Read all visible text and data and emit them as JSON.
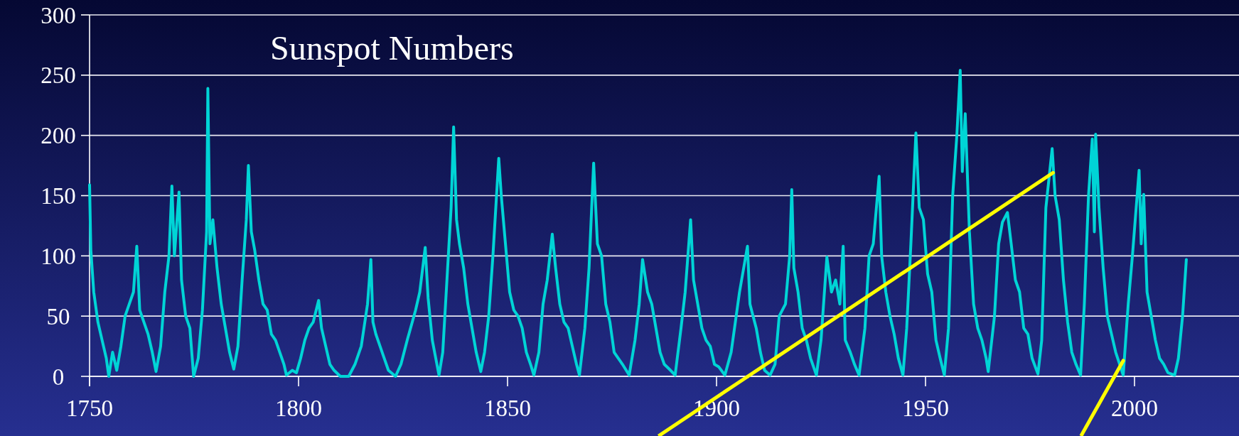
{
  "chart_data": {
    "type": "line",
    "title": "Sunspot Numbers",
    "xlim": [
      1750,
      2025
    ],
    "xticks": [
      1750,
      1800,
      1850,
      1900,
      1950,
      2000
    ],
    "ylim": [
      0,
      300
    ],
    "yticks": [
      0,
      50,
      100,
      150,
      200,
      250,
      300
    ],
    "grid": "y",
    "series": [
      {
        "color": "#00d4d6",
        "x": [
          1750.0,
          1750.3,
          1751,
          1752,
          1753,
          1754,
          1754.6,
          1755.5,
          1756.5,
          1757.5,
          1758.5,
          1759.5,
          1760.5,
          1761.3,
          1762,
          1763,
          1764,
          1765,
          1765.9,
          1767,
          1768,
          1769,
          1769.7,
          1770.3,
          1771.4,
          1772,
          1773,
          1774,
          1774.9,
          1776,
          1777,
          1778,
          1778.3,
          1778.8,
          1779.5,
          1780.5,
          1781.5,
          1782.5,
          1783.5,
          1784.5,
          1785.5,
          1786.5,
          1787.5,
          1788.0,
          1788.7,
          1789.5,
          1790.5,
          1791.5,
          1792.5,
          1793.5,
          1794.5,
          1795.5,
          1796.5,
          1797.1,
          1798.5,
          1799.5,
          1800.5,
          1801.5,
          1802.5,
          1803.5,
          1804.8,
          1805.5,
          1806.5,
          1807.5,
          1808.5,
          1810,
          1812,
          1813.5,
          1815,
          1816.5,
          1817.3,
          1817.8,
          1818.5,
          1819.5,
          1820.5,
          1821.5,
          1823.2,
          1824.5,
          1826,
          1828,
          1829,
          1830.3,
          1831,
          1832,
          1833.6,
          1834.5,
          1835.5,
          1836.5,
          1837.1,
          1837.8,
          1838.5,
          1839.5,
          1840.5,
          1841.5,
          1842.5,
          1843.6,
          1844.5,
          1845.5,
          1846.5,
          1847.9,
          1848.5,
          1849.5,
          1850.5,
          1851.5,
          1852.5,
          1853.5,
          1854.5,
          1855.5,
          1856.3,
          1857.5,
          1858.5,
          1859.5,
          1860.7,
          1861.5,
          1862.5,
          1863.5,
          1864.5,
          1865.5,
          1866.5,
          1867.2,
          1868.5,
          1869.5,
          1870.6,
          1871.5,
          1872.5,
          1873.5,
          1874.5,
          1875.5,
          1876.5,
          1877.5,
          1879.1,
          1880.5,
          1881.5,
          1882.3,
          1883.5,
          1884.5,
          1885.5,
          1886.5,
          1887.5,
          1889,
          1890.1,
          1891.5,
          1892.5,
          1893.8,
          1894.5,
          1895.5,
          1896.5,
          1897.5,
          1898.5,
          1899.5,
          1900.5,
          1902,
          1903.5,
          1904.5,
          1905.5,
          1907.4,
          1908,
          1909.5,
          1910.5,
          1911.5,
          1912.8,
          1914,
          1915,
          1916.5,
          1917.5,
          1918,
          1918.5,
          1919.5,
          1920.5,
          1921.5,
          1922.5,
          1923.9,
          1925,
          1926.4,
          1927.5,
          1928.5,
          1929.5,
          1930.3,
          1930.8,
          1932,
          1933,
          1934.1,
          1935.5,
          1936.5,
          1937.5,
          1938.9,
          1939.5,
          1940.5,
          1941.5,
          1942.5,
          1943.5,
          1944.6,
          1945.5,
          1946.5,
          1947.7,
          1948.5,
          1949.5,
          1950.5,
          1951.5,
          1952.5,
          1953.5,
          1954.5,
          1955.5,
          1956.5,
          1957.5,
          1958.3,
          1958.8,
          1959.5,
          1960.5,
          1961.5,
          1962.5,
          1963.5,
          1964.5,
          1965,
          1966.5,
          1967.5,
          1968.4,
          1969.6,
          1970.5,
          1971.5,
          1972.5,
          1973.5,
          1974.5,
          1975.5,
          1976.9,
          1977.8,
          1978.8,
          1980.3,
          1981,
          1982,
          1983,
          1984,
          1985,
          1986,
          1987.1,
          1988,
          1989,
          1989.9,
          1990.4,
          1990.7,
          1991.5,
          1992.5,
          1993.5,
          1994.5,
          1995.5,
          1997.3,
          1998.5,
          1999.5,
          2001.1,
          2001.6,
          2002.2,
          2003,
          2004,
          2005,
          2006,
          2007,
          2008,
          2009.6,
          2010.5,
          2011.5,
          2012.4
        ],
        "values": [
          159,
          105,
          70,
          45,
          30,
          15,
          0,
          20,
          5,
          25,
          50,
          60,
          70,
          108,
          55,
          45,
          35,
          20,
          4,
          25,
          70,
          100,
          158,
          100,
          153,
          80,
          50,
          40,
          0,
          15,
          55,
          120,
          239,
          110,
          130,
          90,
          60,
          40,
          20,
          6,
          25,
          80,
          130,
          175,
          120,
          105,
          80,
          60,
          55,
          35,
          30,
          20,
          10,
          1,
          5,
          3,
          15,
          30,
          40,
          45,
          63,
          40,
          25,
          10,
          5,
          0,
          0,
          10,
          25,
          60,
          97,
          45,
          35,
          25,
          15,
          5,
          0,
          10,
          30,
          55,
          70,
          107,
          65,
          30,
          1,
          20,
          80,
          140,
          207,
          130,
          110,
          90,
          60,
          40,
          20,
          4,
          20,
          50,
          100,
          181,
          150,
          110,
          70,
          55,
          50,
          40,
          20,
          10,
          1,
          20,
          60,
          80,
          118,
          90,
          60,
          45,
          40,
          25,
          10,
          1,
          40,
          90,
          177,
          110,
          100,
          60,
          45,
          20,
          15,
          10,
          1,
          30,
          60,
          97,
          70,
          60,
          40,
          20,
          10,
          5,
          1,
          40,
          70,
          130,
          80,
          60,
          40,
          30,
          25,
          10,
          8,
          1,
          20,
          45,
          70,
          108,
          60,
          40,
          20,
          5,
          1,
          10,
          50,
          60,
          100,
          155,
          90,
          70,
          40,
          30,
          15,
          1,
          30,
          99,
          70,
          80,
          60,
          108,
          30,
          20,
          10,
          1,
          40,
          100,
          110,
          166,
          100,
          70,
          50,
          35,
          15,
          1,
          40,
          110,
          202,
          140,
          130,
          85,
          70,
          30,
          15,
          1,
          40,
          150,
          200,
          254,
          170,
          218,
          120,
          60,
          40,
          30,
          15,
          4,
          50,
          110,
          128,
          136,
          110,
          80,
          70,
          40,
          35,
          15,
          2,
          30,
          140,
          189,
          150,
          130,
          80,
          45,
          20,
          10,
          1,
          60,
          150,
          197,
          120,
          201,
          140,
          90,
          50,
          35,
          20,
          1,
          60,
          100,
          171,
          110,
          151,
          70,
          50,
          30,
          15,
          10,
          3,
          1,
          15,
          50,
          97
        ]
      },
      {
        "type": "line",
        "color": "#ffff00",
        "x": [
          1907.5,
          1980.5
        ],
        "values": [
          0,
          169
        ]
      },
      {
        "type": "line",
        "color": "#ffff00",
        "x": [
          1995.2,
          1997.3
        ],
        "values": [
          0,
          13
        ]
      }
    ]
  }
}
